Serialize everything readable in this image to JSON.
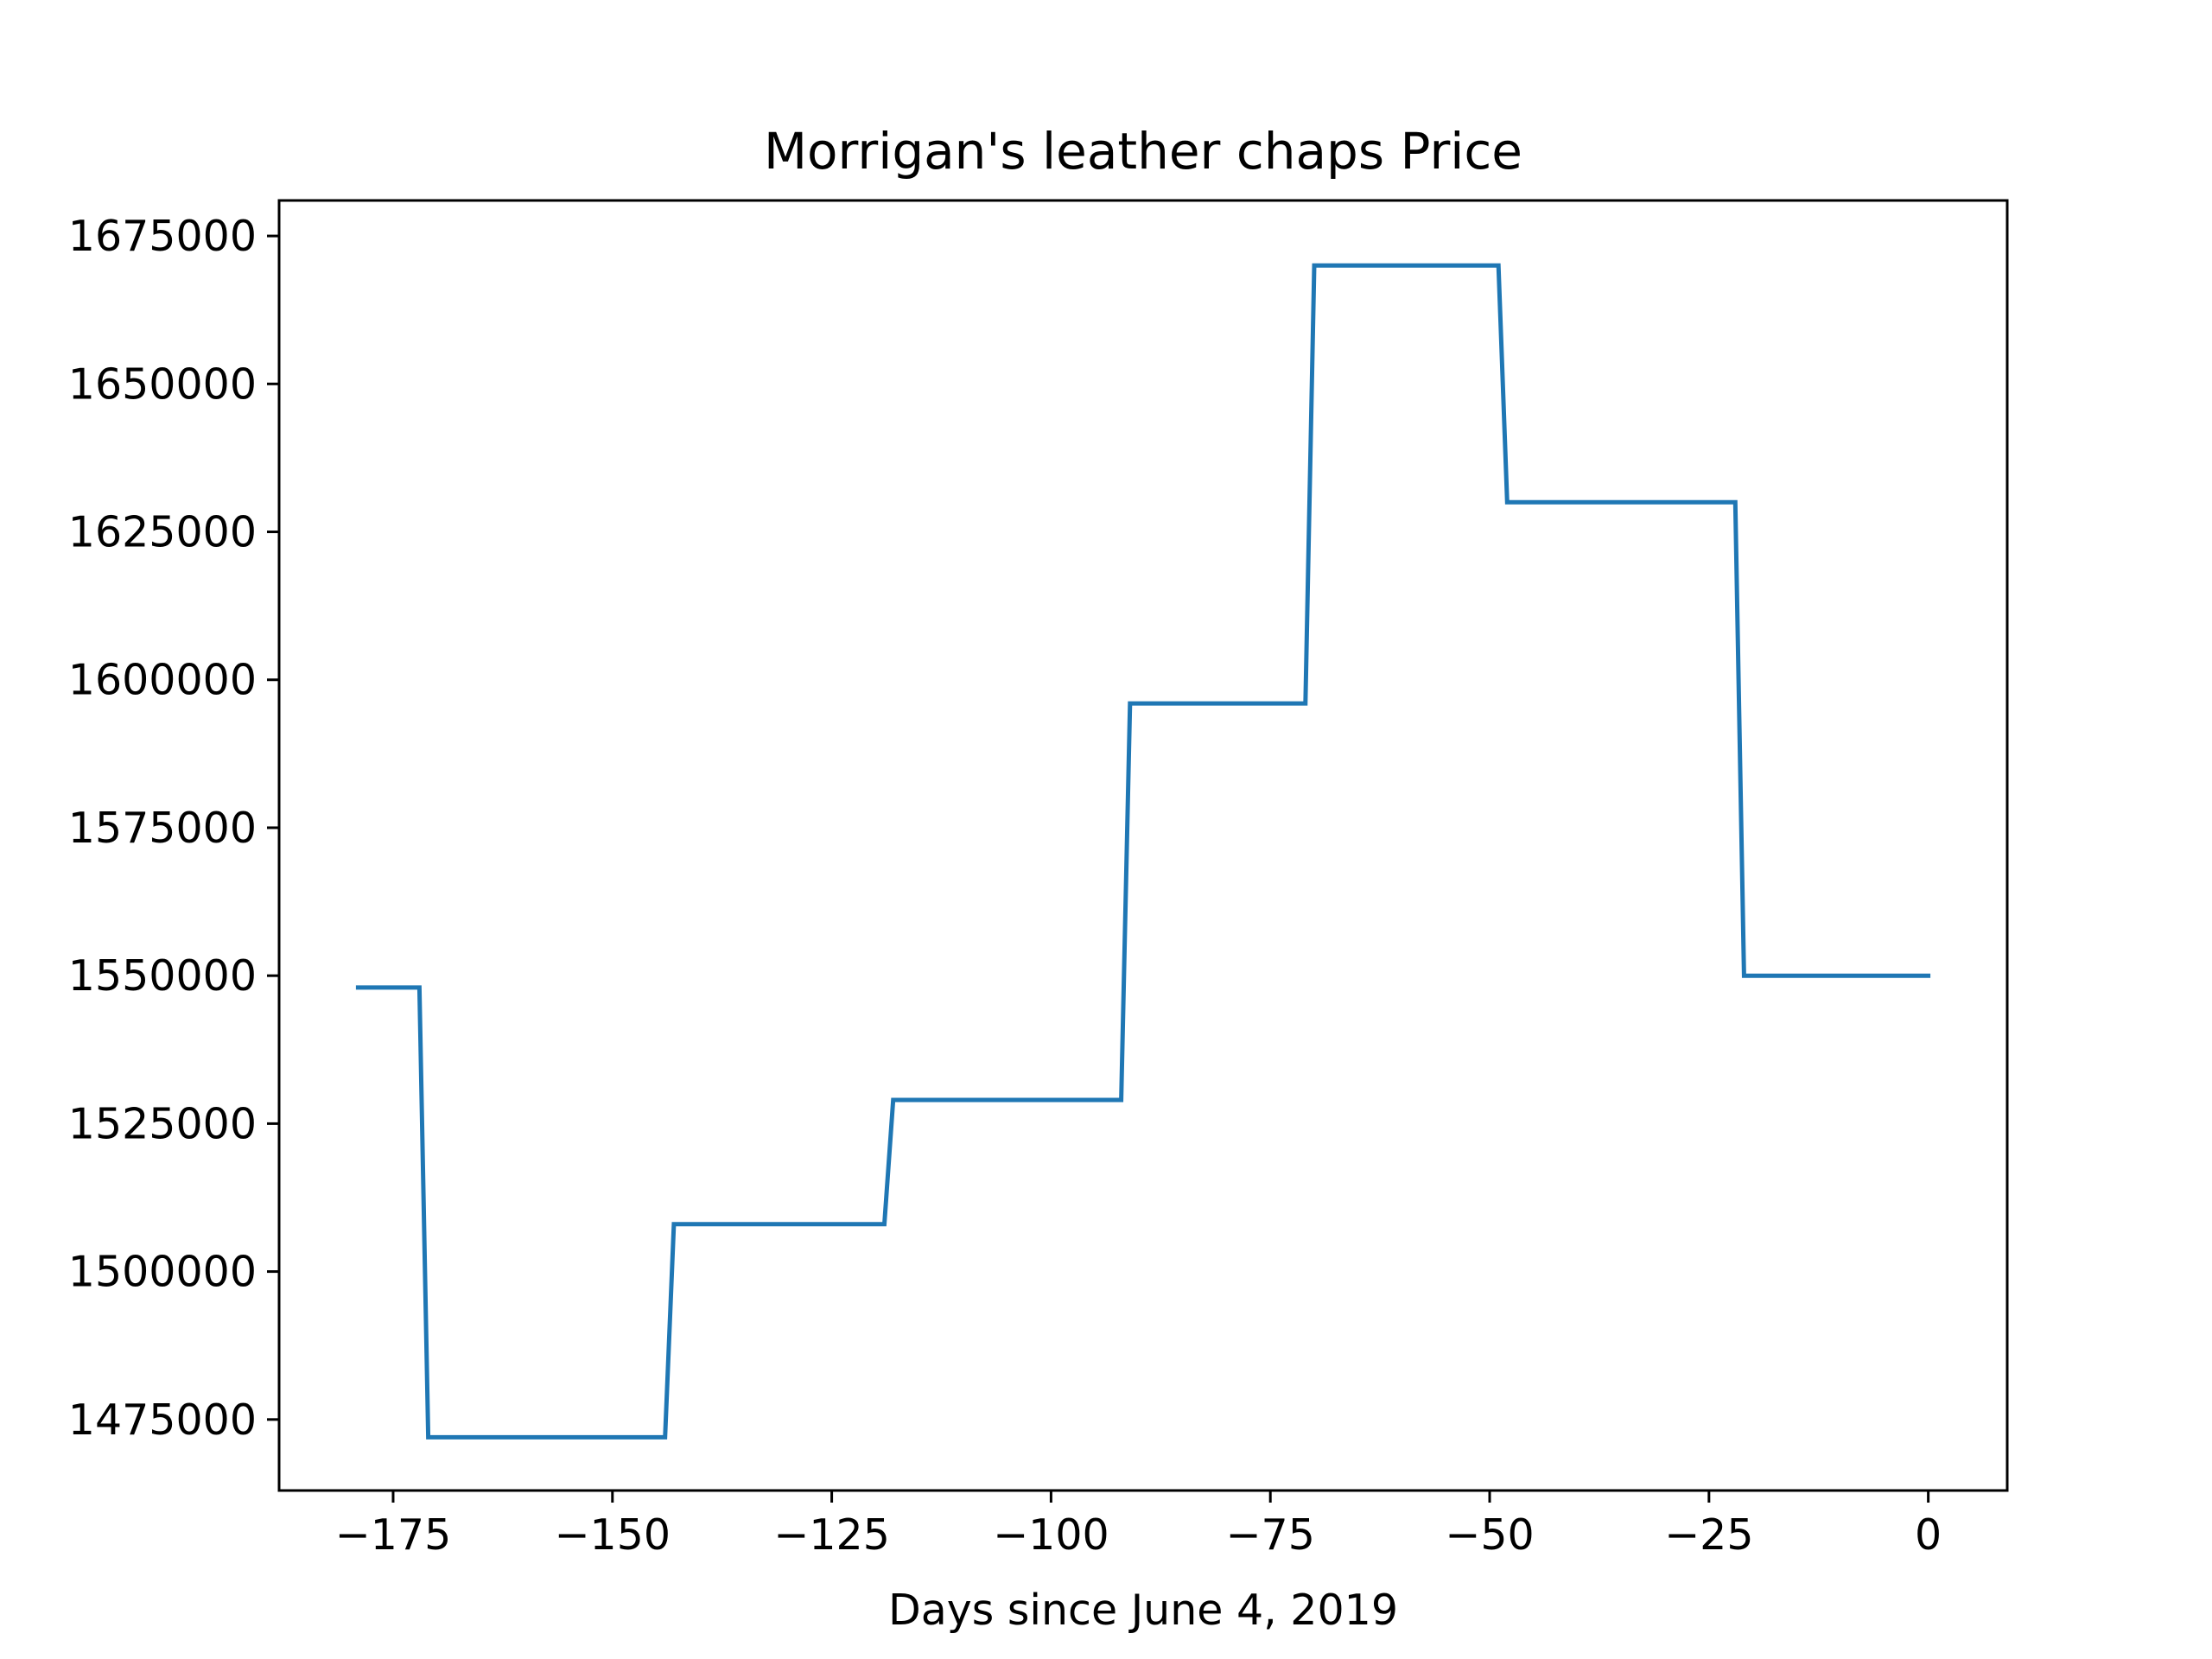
{
  "chart_data": {
    "type": "line",
    "title": "Morrigan's leather chaps Price",
    "xlabel": "Days since June 4, 2019",
    "ylabel": "",
    "xlim": [
      -188,
      9
    ],
    "ylim": [
      1463000,
      1681000
    ],
    "x_ticks": [
      -175,
      -150,
      -125,
      -100,
      -75,
      -50,
      -25,
      0
    ],
    "x_tick_labels": [
      "−175",
      "−150",
      "−125",
      "−100",
      "−75",
      "−50",
      "−25",
      "0"
    ],
    "y_ticks": [
      1475000,
      1500000,
      1525000,
      1550000,
      1575000,
      1600000,
      1625000,
      1650000,
      1675000
    ],
    "y_tick_labels": [
      "1475000",
      "1500000",
      "1525000",
      "1550000",
      "1575000",
      "1600000",
      "1625000",
      "1650000",
      "1675000"
    ],
    "grid": false,
    "series": [
      {
        "color": "#1f77b4",
        "x": [
          -179,
          -172,
          -171,
          -144,
          -143,
          -119,
          -118,
          -92,
          -91,
          -71,
          -70,
          -49,
          -48,
          -22,
          -21,
          0
        ],
        "y": [
          1548000,
          1548000,
          1472000,
          1472000,
          1508000,
          1508000,
          1529000,
          1529000,
          1596000,
          1596000,
          1670000,
          1670000,
          1630000,
          1630000,
          1550000,
          1550000
        ]
      }
    ]
  }
}
